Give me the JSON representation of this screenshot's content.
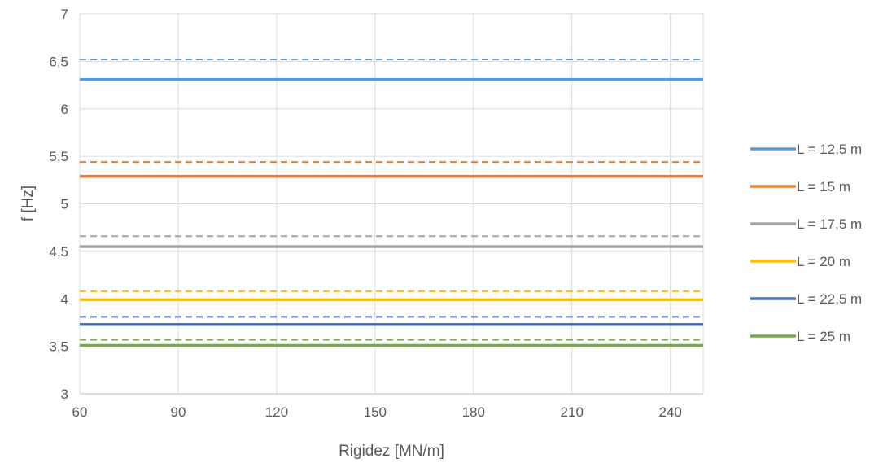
{
  "chart_data": {
    "type": "line",
    "title": "",
    "xlabel": "Rigidez [MN/m]",
    "ylabel": "f [Hz]",
    "xlim": [
      60,
      250
    ],
    "ylim": [
      3,
      7
    ],
    "x_ticks": [
      60,
      90,
      120,
      150,
      180,
      210,
      240
    ],
    "x_tick_labels": [
      "60",
      "90",
      "120",
      "150",
      "180",
      "210",
      "240"
    ],
    "y_ticks": [
      3,
      3.5,
      4,
      4.5,
      5,
      5.5,
      6,
      6.5,
      7
    ],
    "y_tick_labels": [
      "3",
      "3,5",
      "4",
      "4,5",
      "5",
      "5,5",
      "6",
      "6,5",
      "7"
    ],
    "grid": true,
    "legend_position": "right",
    "series": [
      {
        "name": "L = 12,5 m",
        "color": "#5B9BD5",
        "x": [
          60,
          250
        ],
        "values": [
          6.31,
          6.31
        ],
        "style": "solid"
      },
      {
        "name": "L = 15 m",
        "color": "#ED7D31",
        "x": [
          60,
          250
        ],
        "values": [
          5.29,
          5.29
        ],
        "style": "solid"
      },
      {
        "name": "L = 17,5 m",
        "color": "#A5A5A5",
        "x": [
          60,
          250
        ],
        "values": [
          4.55,
          4.55
        ],
        "style": "solid"
      },
      {
        "name": "L = 20 m",
        "color": "#FFC000",
        "x": [
          60,
          250
        ],
        "values": [
          3.99,
          3.99
        ],
        "style": "solid"
      },
      {
        "name": "L = 22,5 m",
        "color": "#4472C4",
        "x": [
          60,
          250
        ],
        "values": [
          3.73,
          3.73
        ],
        "style": "solid"
      },
      {
        "name": "L = 25 m",
        "color": "#70AD47",
        "x": [
          60,
          250
        ],
        "values": [
          3.51,
          3.51
        ],
        "style": "solid"
      },
      {
        "color": "#5B9BD5",
        "x": [
          60,
          250
        ],
        "values": [
          6.52,
          6.52
        ],
        "style": "dashed"
      },
      {
        "color": "#ED7D31",
        "x": [
          60,
          250
        ],
        "values": [
          5.44,
          5.44
        ],
        "style": "dashed"
      },
      {
        "color": "#A5A5A5",
        "x": [
          60,
          250
        ],
        "values": [
          4.66,
          4.66
        ],
        "style": "dashed"
      },
      {
        "color": "#FFC000",
        "x": [
          60,
          250
        ],
        "values": [
          4.08,
          4.08
        ],
        "style": "dashed"
      },
      {
        "color": "#4472C4",
        "x": [
          60,
          250
        ],
        "values": [
          3.81,
          3.81
        ],
        "style": "dashed"
      },
      {
        "color": "#70AD47",
        "x": [
          60,
          250
        ],
        "values": [
          3.57,
          3.57
        ],
        "style": "dashed"
      }
    ]
  }
}
